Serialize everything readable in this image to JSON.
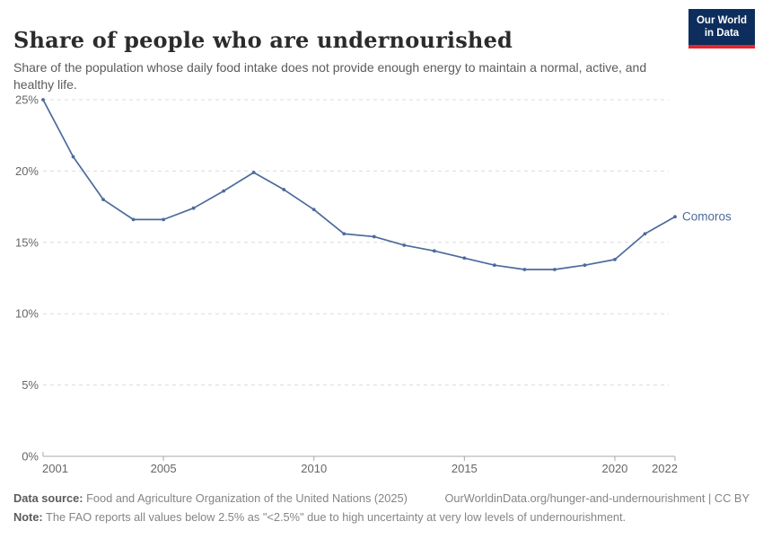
{
  "header": {
    "title": "Share of people who are undernourished",
    "subtitle": "Share of the population whose daily food intake does not provide enough energy to maintain a normal, active, and healthy life.",
    "logo": {
      "line1": "Our World",
      "line2": "in Data"
    }
  },
  "chart_data": {
    "type": "line",
    "title": "Share of people who are undernourished",
    "xlabel": "",
    "ylabel": "",
    "x": [
      2001,
      2002,
      2003,
      2004,
      2005,
      2006,
      2007,
      2008,
      2009,
      2010,
      2011,
      2012,
      2013,
      2014,
      2015,
      2016,
      2017,
      2018,
      2019,
      2020,
      2021,
      2022
    ],
    "series": [
      {
        "name": "Comoros",
        "color": "#4c6a9c",
        "values": [
          25.0,
          21.0,
          18.0,
          16.6,
          16.6,
          17.4,
          18.6,
          19.9,
          18.7,
          17.3,
          15.6,
          15.4,
          14.8,
          14.4,
          13.9,
          13.4,
          13.1,
          13.1,
          13.4,
          13.8,
          15.6,
          16.8
        ]
      }
    ],
    "xlim": [
      2001,
      2022
    ],
    "ylim": [
      0,
      25
    ],
    "x_ticks": [
      2001,
      2005,
      2010,
      2015,
      2020,
      2022
    ],
    "y_ticks": [
      0,
      5,
      10,
      15,
      20,
      25
    ],
    "y_tick_suffix": "%",
    "grid": "horizontal dashed",
    "legend_position": "end-of-line"
  },
  "footer": {
    "data_source_label": "Data source:",
    "data_source_text": "Food and Agriculture Organization of the United Nations (2025)",
    "credit": "OurWorldinData.org/hunger-and-undernourishment | CC BY",
    "note_label": "Note:",
    "note_text": "The FAO reports all values below 2.5% as \"<2.5%\" due to high uncertainty at very low levels of undernourishment."
  },
  "colors": {
    "line": "#4c6a9c",
    "grid": "#dcdcdc",
    "axis": "#a8a8a8",
    "tick_label": "#666666",
    "logo_bg": "#0d2e5c",
    "logo_accent": "#e2262b"
  }
}
